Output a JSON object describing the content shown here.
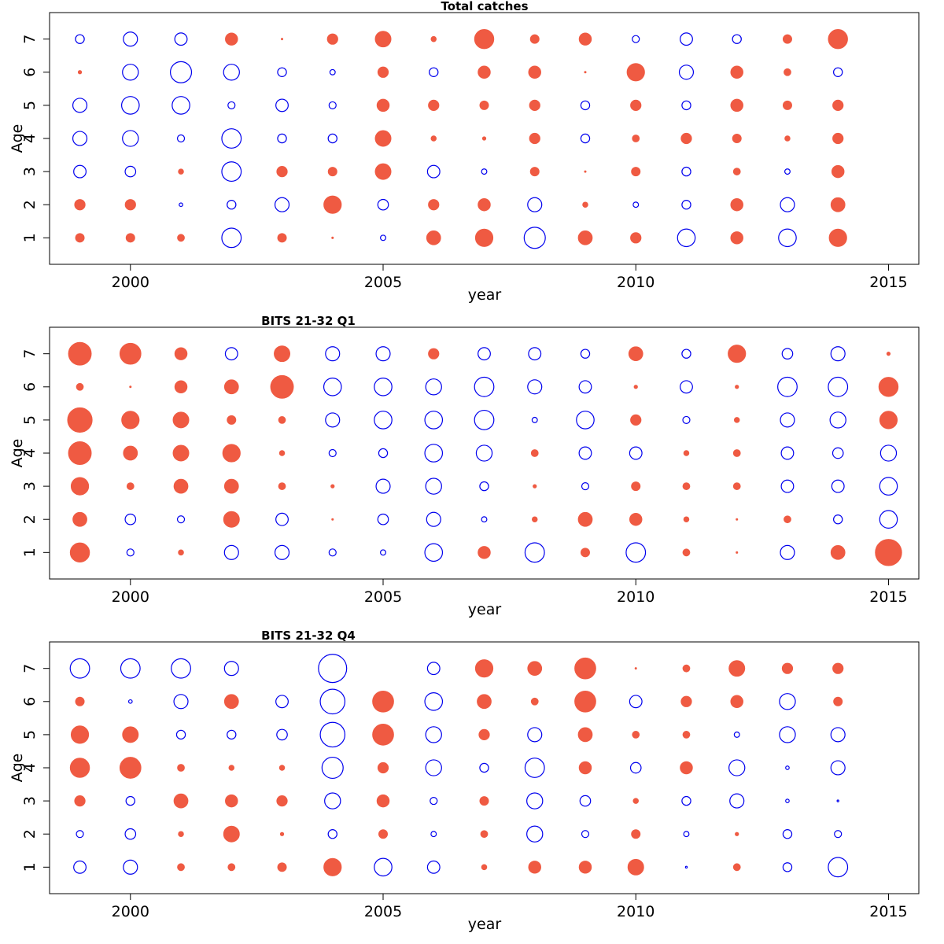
{
  "colors": {
    "positive": "#ef5a42",
    "negative": "#0000ee"
  },
  "chart_data": [
    {
      "type": "bubble",
      "title": "Total catches",
      "xlabel": "year",
      "ylabel": "Age",
      "xlim": [
        1998.4,
        2015.6
      ],
      "ylim": [
        0.2,
        7.8
      ],
      "xticks": [
        2000,
        2005,
        2010,
        2015
      ],
      "yticks": [
        1,
        2,
        3,
        4,
        5,
        6,
        7
      ],
      "years": [
        1999,
        2000,
        2001,
        2002,
        2003,
        2004,
        2005,
        2006,
        2007,
        2008,
        2009,
        2010,
        2011,
        2012,
        2013,
        2014
      ],
      "ages": [
        1,
        2,
        3,
        4,
        5,
        6,
        7
      ],
      "values_by_age": [
        [
          5,
          5,
          4,
          -11,
          5,
          1,
          -3,
          8,
          10,
          -12,
          8,
          6,
          -10,
          7,
          -10,
          10
        ],
        [
          6,
          6,
          -2,
          -5,
          -8,
          10,
          -6,
          6,
          7,
          -8,
          3,
          -3,
          -5,
          7,
          -8,
          8
        ],
        [
          -7,
          -6,
          3,
          -11,
          6,
          5,
          9,
          -7,
          -3,
          5,
          1,
          5,
          -5,
          4,
          -3,
          7
        ],
        [
          -8,
          -9,
          -4,
          -11,
          -5,
          -5,
          9,
          3,
          2,
          6,
          -5,
          4,
          6,
          5,
          3,
          6
        ],
        [
          -8,
          -10,
          -10,
          -4,
          -7,
          -4,
          7,
          6,
          5,
          6,
          -5,
          6,
          -5,
          7,
          5,
          6
        ],
        [
          2,
          -9,
          -12,
          -9,
          -5,
          -3,
          6,
          -5,
          7,
          7,
          1,
          10,
          -8,
          7,
          4,
          -5
        ],
        [
          -5,
          -8,
          -7,
          7,
          1,
          6,
          9,
          3,
          11,
          5,
          7,
          -4,
          -7,
          -5,
          5,
          11
        ]
      ]
    },
    {
      "type": "bubble",
      "title": "BITS 21-32 Q1",
      "xlabel": "year",
      "ylabel": "Age",
      "xlim": [
        1998.4,
        2015.6
      ],
      "ylim": [
        0.2,
        7.8
      ],
      "xticks": [
        2000,
        2005,
        2010,
        2015
      ],
      "yticks": [
        1,
        2,
        3,
        4,
        5,
        6,
        7
      ],
      "years": [
        1999,
        2000,
        2001,
        2002,
        2003,
        2004,
        2005,
        2006,
        2007,
        2008,
        2009,
        2010,
        2011,
        2012,
        2013,
        2014,
        2015
      ],
      "ages": [
        1,
        2,
        3,
        4,
        5,
        6,
        7
      ],
      "values_by_age": [
        [
          11,
          -4,
          3,
          -8,
          -8,
          -4,
          -3,
          -10,
          7,
          -11,
          5,
          -11,
          4,
          1,
          -8,
          8,
          15
        ],
        [
          8,
          -6,
          -4,
          9,
          -7,
          1,
          -6,
          -8,
          -3,
          3,
          8,
          7,
          3,
          1,
          4,
          -5,
          -10
        ],
        [
          10,
          4,
          8,
          8,
          4,
          2,
          -8,
          -9,
          -5,
          2,
          -4,
          5,
          4,
          4,
          -7,
          -7,
          -10
        ],
        [
          13,
          8,
          9,
          10,
          3,
          -4,
          -5,
          -10,
          -9,
          4,
          -7,
          -7,
          3,
          4,
          -7,
          -6,
          -9
        ],
        [
          14,
          10,
          9,
          5,
          4,
          -8,
          -10,
          -10,
          -11,
          -3,
          -10,
          6,
          -4,
          3,
          -8,
          -9,
          10
        ],
        [
          4,
          1,
          7,
          8,
          13,
          -10,
          -10,
          -9,
          -11,
          -8,
          -7,
          2,
          -7,
          2,
          -11,
          -11,
          11
        ],
        [
          13,
          12,
          7,
          -7,
          9,
          -8,
          -8,
          6,
          -7,
          -7,
          -5,
          8,
          -5,
          10,
          -6,
          -8,
          2
        ]
      ]
    },
    {
      "type": "bubble",
      "title": "BITS 21-32 Q4",
      "xlabel": "year",
      "ylabel": "Age",
      "xlim": [
        1998.4,
        2015.6
      ],
      "ylim": [
        0.2,
        7.8
      ],
      "xticks": [
        2000,
        2005,
        2010,
        2015
      ],
      "yticks": [
        1,
        2,
        3,
        4,
        5,
        6,
        7
      ],
      "years": [
        1999,
        2000,
        2001,
        2002,
        2003,
        2004,
        2005,
        2006,
        2007,
        2008,
        2009,
        2010,
        2011,
        2012,
        2013,
        2014
      ],
      "ages": [
        1,
        2,
        3,
        4,
        5,
        6,
        7
      ],
      "values_by_age": [
        [
          -7,
          -8,
          4,
          4,
          5,
          10,
          -10,
          -7,
          3,
          7,
          7,
          9,
          -1,
          4,
          -5,
          -11
        ],
        [
          -4,
          -6,
          3,
          9,
          2,
          -5,
          5,
          -3,
          4,
          -9,
          -4,
          5,
          -3,
          2,
          -5,
          -4
        ],
        [
          6,
          -5,
          8,
          7,
          6,
          -9,
          7,
          -4,
          5,
          -9,
          -6,
          3,
          -5,
          -8,
          -2,
          -1
        ],
        [
          11,
          12,
          4,
          3,
          3,
          -12,
          6,
          -9,
          -5,
          -11,
          7,
          -6,
          7,
          -9,
          -2,
          -8
        ],
        [
          10,
          9,
          -5,
          -5,
          -6,
          -14,
          12,
          -9,
          6,
          -8,
          8,
          4,
          4,
          -3,
          -9,
          -8
        ],
        [
          5,
          -2,
          -8,
          8,
          -7,
          -14,
          12,
          -10,
          8,
          4,
          12,
          -7,
          6,
          7,
          -9,
          5
        ],
        [
          -11,
          -11,
          -11,
          -8,
          0,
          -16,
          0,
          -7,
          10,
          8,
          12,
          1,
          4,
          9,
          6,
          6
        ]
      ]
    }
  ]
}
